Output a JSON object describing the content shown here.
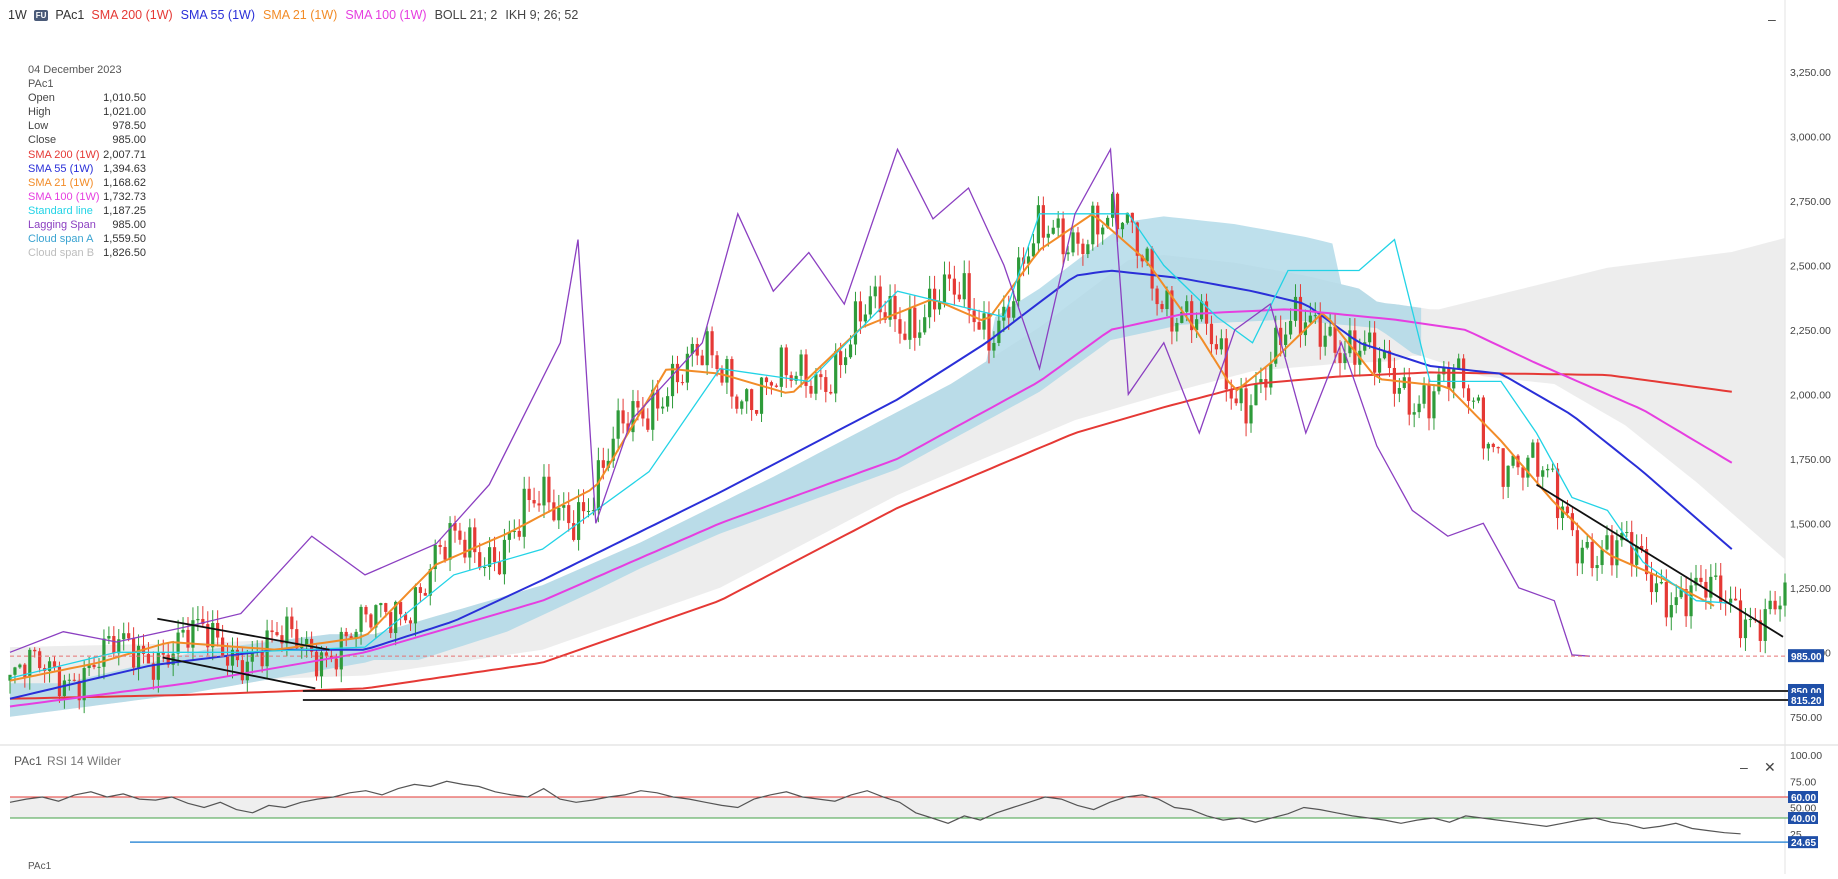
{
  "header": {
    "timeframe": "1W",
    "badge": "FU",
    "symbol": "PAc1",
    "studies": [
      {
        "label": "SMA 200 (1W)",
        "color": "#e53935"
      },
      {
        "label": "SMA 55 (1W)",
        "color": "#2a2fd8"
      },
      {
        "label": "SMA 21 (1W)",
        "color": "#f28c28"
      },
      {
        "label": "SMA 100 (1W)",
        "color": "#e63ee0"
      },
      {
        "label": "BOLL 21; 2",
        "color": "#444444"
      },
      {
        "label": "IKH 9; 26; 52",
        "color": "#444444"
      }
    ]
  },
  "info": {
    "date": "04 December 2023",
    "symbol": "PAc1",
    "rows": [
      {
        "label": "Open",
        "value": "1,010.50",
        "color": "#444444"
      },
      {
        "label": "High",
        "value": "1,021.00",
        "color": "#444444"
      },
      {
        "label": "Low",
        "value": "978.50",
        "color": "#444444"
      },
      {
        "label": "Close",
        "value": "985.00",
        "color": "#444444"
      },
      {
        "label": "SMA 200 (1W)",
        "value": "2,007.71",
        "color": "#e53935"
      },
      {
        "label": "SMA 55 (1W)",
        "value": "1,394.63",
        "color": "#2a2fd8"
      },
      {
        "label": "SMA 21 (1W)",
        "value": "1,168.62",
        "color": "#f28c28"
      },
      {
        "label": "SMA 100 (1W)",
        "value": "1,732.73",
        "color": "#e63ee0"
      },
      {
        "label": "Standard line",
        "value": "1,187.25",
        "color": "#22d3e6"
      },
      {
        "label": "Lagging Span",
        "value": "985.00",
        "color": "#8b3fc1"
      },
      {
        "label": "Cloud span A",
        "value": "1,559.50",
        "color": "#3aa3d1"
      },
      {
        "label": "Cloud span B",
        "value": "1,826.50",
        "color": "#bdbdbd"
      }
    ]
  },
  "panel_controls": {
    "minimize": "–",
    "close": "✕"
  },
  "rsi_panel": {
    "title": "PAc1",
    "subtitle": "RSI 14 Wilder",
    "footer_symbol": "PAc1"
  },
  "chart_data": [
    {
      "type": "candlestick",
      "symbol": "PAc1",
      "interval": "1W",
      "price_axis": {
        "ticks": [
          750,
          1000,
          1250,
          1500,
          1750,
          2000,
          2250,
          2500,
          2750,
          3000,
          3250
        ],
        "tick_labels": [
          "750.00",
          "1,000.00",
          "1,250.00",
          "1,500.00",
          "1,750.00",
          "2,000.00",
          "2,250.00",
          "2,500.00",
          "2,750.00",
          "3,000.00",
          "3,250.00"
        ],
        "range": [
          660,
          3490
        ]
      },
      "last": {
        "open": 1010.5,
        "high": 1021.0,
        "low": 978.5,
        "close": 985.0
      },
      "price_tags": [
        {
          "label": "985.00",
          "value": 985,
          "color": "#1f4fa8"
        },
        {
          "label": "850.00",
          "value": 850,
          "color": "#1f4fa8"
        },
        {
          "label": "815.20",
          "value": 815.2,
          "color": "#1f4fa8"
        }
      ],
      "horizontal_levels": [
        850,
        815.2
      ],
      "series": [
        {
          "name": "SMA 200 (1W)",
          "color": "#e53935",
          "points": [
            [
              0,
              820
            ],
            [
              0.1,
              835
            ],
            [
              0.2,
              860
            ],
            [
              0.3,
              960
            ],
            [
              0.4,
              1200
            ],
            [
              0.5,
              1560
            ],
            [
              0.6,
              1850
            ],
            [
              0.65,
              1950
            ],
            [
              0.7,
              2040
            ],
            [
              0.75,
              2070
            ],
            [
              0.8,
              2085
            ],
            [
              0.9,
              2075
            ],
            [
              0.97,
              2010
            ]
          ]
        },
        {
          "name": "SMA 55 (1W)",
          "color": "#2a2fd8",
          "points": [
            [
              0,
              820
            ],
            [
              0.08,
              950
            ],
            [
              0.15,
              1010
            ],
            [
              0.2,
              1010
            ],
            [
              0.25,
              1120
            ],
            [
              0.3,
              1280
            ],
            [
              0.4,
              1620
            ],
            [
              0.5,
              1980
            ],
            [
              0.55,
              2200
            ],
            [
              0.6,
              2460
            ],
            [
              0.62,
              2480
            ],
            [
              0.66,
              2450
            ],
            [
              0.7,
              2400
            ],
            [
              0.73,
              2350
            ],
            [
              0.76,
              2200
            ],
            [
              0.8,
              2110
            ],
            [
              0.84,
              2080
            ],
            [
              0.88,
              1920
            ],
            [
              0.92,
              1700
            ],
            [
              0.97,
              1400
            ]
          ]
        },
        {
          "name": "SMA 21 (1W)",
          "color": "#f28c28",
          "points": [
            [
              0,
              890
            ],
            [
              0.05,
              960
            ],
            [
              0.09,
              1040
            ],
            [
              0.15,
              1010
            ],
            [
              0.2,
              1060
            ],
            [
              0.24,
              1340
            ],
            [
              0.28,
              1460
            ],
            [
              0.33,
              1640
            ],
            [
              0.37,
              2100
            ],
            [
              0.4,
              2080
            ],
            [
              0.44,
              2000
            ],
            [
              0.48,
              2260
            ],
            [
              0.52,
              2370
            ],
            [
              0.55,
              2280
            ],
            [
              0.58,
              2560
            ],
            [
              0.61,
              2700
            ],
            [
              0.64,
              2520
            ],
            [
              0.67,
              2230
            ],
            [
              0.69,
              2010
            ],
            [
              0.71,
              2120
            ],
            [
              0.74,
              2320
            ],
            [
              0.77,
              2060
            ],
            [
              0.81,
              2030
            ],
            [
              0.84,
              1820
            ],
            [
              0.87,
              1580
            ],
            [
              0.9,
              1380
            ],
            [
              0.93,
              1290
            ],
            [
              0.96,
              1180
            ]
          ]
        },
        {
          "name": "SMA 100 (1W)",
          "color": "#e63ee0",
          "points": [
            [
              0,
              790
            ],
            [
              0.1,
              880
            ],
            [
              0.2,
              1000
            ],
            [
              0.3,
              1200
            ],
            [
              0.4,
              1500
            ],
            [
              0.5,
              1750
            ],
            [
              0.58,
              2050
            ],
            [
              0.62,
              2250
            ],
            [
              0.66,
              2310
            ],
            [
              0.72,
              2330
            ],
            [
              0.78,
              2290
            ],
            [
              0.82,
              2250
            ],
            [
              0.86,
              2120
            ],
            [
              0.92,
              1940
            ],
            [
              0.97,
              1735
            ]
          ]
        },
        {
          "name": "Standard line",
          "color": "#22d3e6",
          "points": [
            [
              0,
              900
            ],
            [
              0.06,
              1000
            ],
            [
              0.13,
              1000
            ],
            [
              0.2,
              1020
            ],
            [
              0.25,
              1300
            ],
            [
              0.3,
              1400
            ],
            [
              0.36,
              1700
            ],
            [
              0.4,
              2100
            ],
            [
              0.45,
              2050
            ],
            [
              0.5,
              2400
            ],
            [
              0.56,
              2300
            ],
            [
              0.58,
              2700
            ],
            [
              0.63,
              2700
            ],
            [
              0.65,
              2500
            ],
            [
              0.68,
              2300
            ],
            [
              0.7,
              2200
            ],
            [
              0.72,
              2480
            ],
            [
              0.76,
              2480
            ],
            [
              0.78,
              2600
            ],
            [
              0.8,
              2050
            ],
            [
              0.84,
              2050
            ],
            [
              0.86,
              1850
            ],
            [
              0.88,
              1600
            ],
            [
              0.9,
              1550
            ],
            [
              0.92,
              1350
            ],
            [
              0.95,
              1200
            ],
            [
              0.97,
              1190
            ]
          ]
        },
        {
          "name": "Lagging Span",
          "color": "#8b3fc1",
          "points": [
            [
              0,
              1000
            ],
            [
              0.03,
              1080
            ],
            [
              0.06,
              1040
            ],
            [
              0.1,
              1100
            ],
            [
              0.13,
              1150
            ],
            [
              0.17,
              1450
            ],
            [
              0.2,
              1300
            ],
            [
              0.24,
              1420
            ],
            [
              0.27,
              1650
            ],
            [
              0.31,
              2200
            ],
            [
              0.32,
              2600
            ],
            [
              0.33,
              1500
            ],
            [
              0.35,
              1900
            ],
            [
              0.37,
              2050
            ],
            [
              0.39,
              2200
            ],
            [
              0.41,
              2700
            ],
            [
              0.43,
              2400
            ],
            [
              0.45,
              2550
            ],
            [
              0.47,
              2350
            ],
            [
              0.5,
              2950
            ],
            [
              0.52,
              2680
            ],
            [
              0.54,
              2800
            ],
            [
              0.56,
              2500
            ],
            [
              0.58,
              2100
            ],
            [
              0.6,
              2700
            ],
            [
              0.62,
              2950
            ],
            [
              0.63,
              2000
            ],
            [
              0.65,
              2200
            ],
            [
              0.67,
              1850
            ],
            [
              0.69,
              2250
            ],
            [
              0.71,
              2350
            ],
            [
              0.73,
              1850
            ],
            [
              0.75,
              2200
            ],
            [
              0.77,
              1800
            ],
            [
              0.79,
              1550
            ],
            [
              0.81,
              1450
            ],
            [
              0.83,
              1500
            ],
            [
              0.85,
              1250
            ],
            [
              0.87,
              1200
            ],
            [
              0.88,
              990
            ],
            [
              0.89,
              985
            ]
          ]
        },
        {
          "name": "Cloud span A",
          "color": "#3aa3d1"
        },
        {
          "name": "Cloud span B",
          "color": "#bdbdbd"
        }
      ],
      "candles_generated_from": "series shape (illustrative)"
    },
    {
      "type": "line",
      "title": "RSI 14 Wilder",
      "ylim": [
        0,
        100
      ],
      "ticks": [
        25,
        50,
        75,
        100
      ],
      "tick_labels": [
        "25",
        "50.00",
        "75.00",
        "100.00"
      ],
      "levels": [
        {
          "value": 60,
          "label": "60.00",
          "color": "#e53935"
        },
        {
          "value": 40,
          "label": "40.00",
          "color": "#43a047"
        }
      ],
      "last_value_label": "24.65",
      "values": [
        55,
        58,
        60,
        56,
        62,
        65,
        60,
        63,
        58,
        57,
        60,
        54,
        50,
        55,
        48,
        45,
        52,
        50,
        55,
        58,
        60,
        64,
        66,
        62,
        68,
        72,
        70,
        75,
        72,
        70,
        65,
        62,
        60,
        68,
        58,
        55,
        57,
        60,
        62,
        66,
        64,
        60,
        58,
        55,
        52,
        50,
        58,
        62,
        65,
        60,
        58,
        56,
        62,
        66,
        60,
        55,
        45,
        40,
        35,
        42,
        38,
        45,
        50,
        55,
        60,
        58,
        52,
        48,
        55,
        60,
        62,
        58,
        50,
        48,
        42,
        38,
        40,
        36,
        40,
        44,
        50,
        48,
        45,
        42,
        40,
        38,
        35,
        38,
        40,
        36,
        42,
        40,
        38,
        36,
        34,
        32,
        35,
        38,
        40,
        36,
        34,
        30,
        32,
        35,
        30,
        28,
        26,
        25
      ]
    }
  ]
}
